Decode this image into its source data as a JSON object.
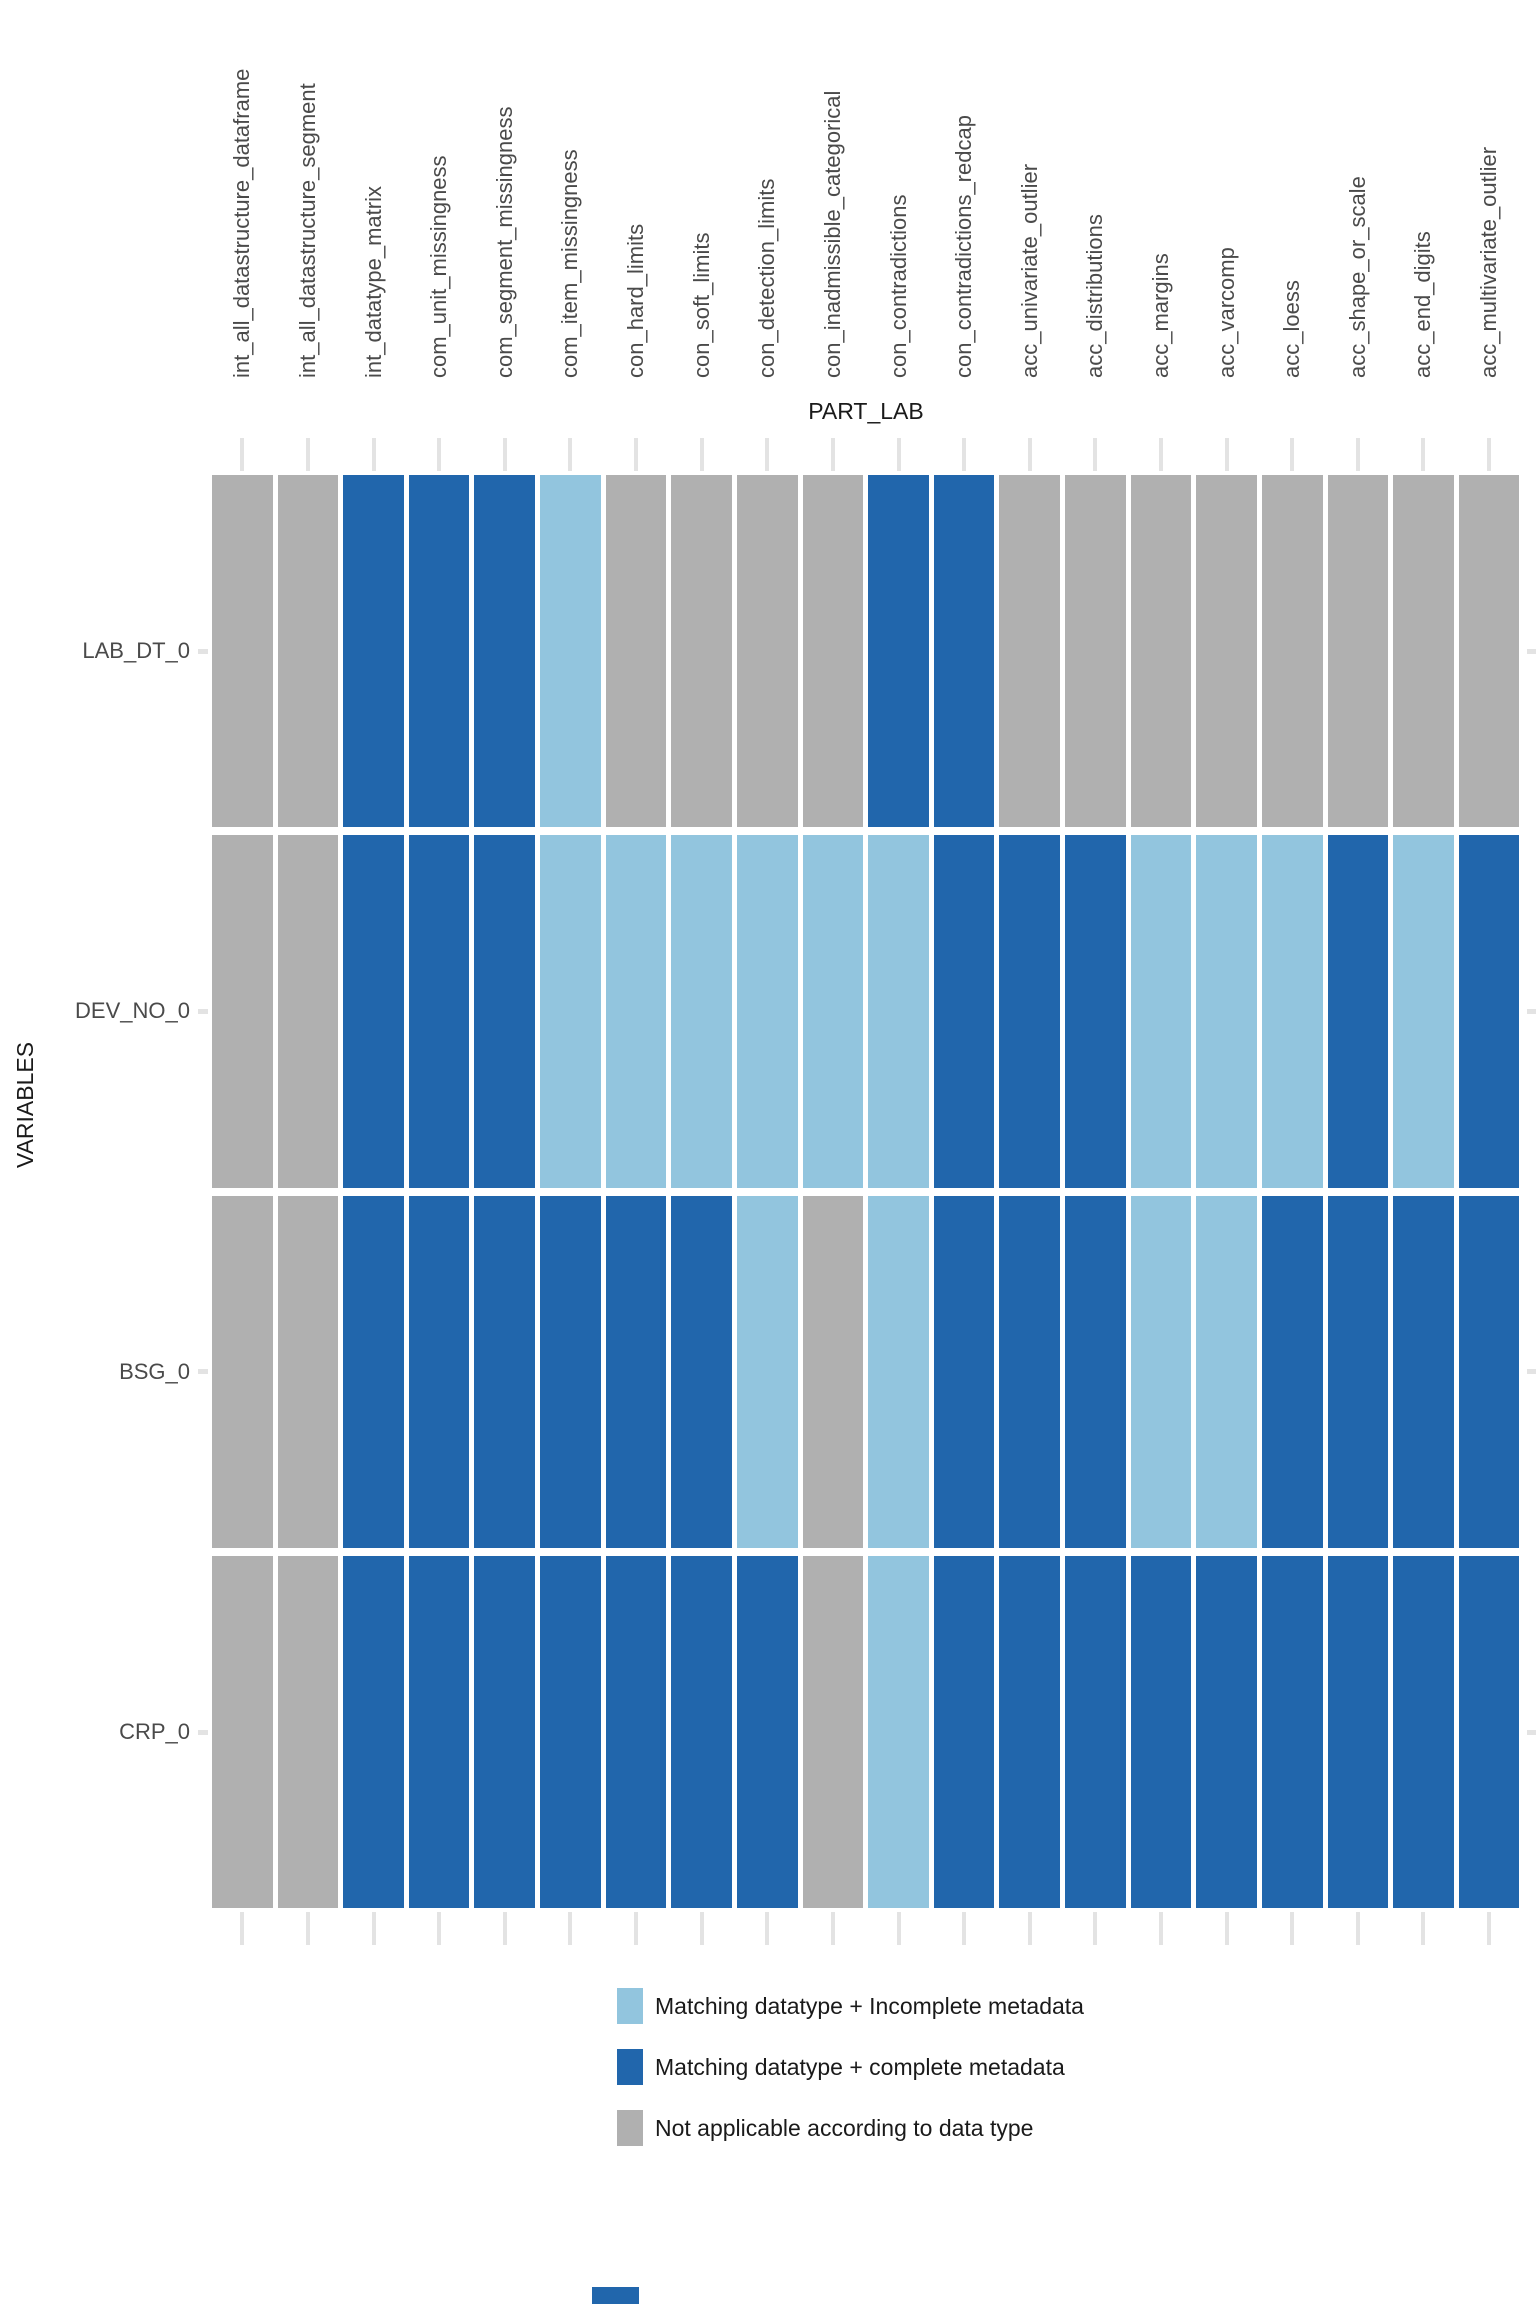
{
  "chart_data": {
    "type": "heatmap",
    "title": "",
    "xlabel": "PART_LAB",
    "ylabel": "VARIABLES",
    "grid": "off",
    "legend_position": "bottom-left",
    "columns": [
      "int_all_datastructure_dataframe",
      "int_all_datastructure_segment",
      "int_datatype_matrix",
      "com_unit_missingness",
      "com_segment_missingness",
      "com_item_missingness",
      "con_hard_limits",
      "con_soft_limits",
      "con_detection_limits",
      "con_inadmissible_categorical",
      "con_contradictions",
      "con_contradictions_redcap",
      "acc_univariate_outlier",
      "acc_distributions",
      "acc_margins",
      "acc_varcomp",
      "acc_loess",
      "acc_shape_or_scale",
      "acc_end_digits",
      "acc_multivariate_outlier"
    ],
    "rows": [
      "LAB_DT_0",
      "DEV_NO_0",
      "BSG_0",
      "CRP_0"
    ],
    "cells": [
      [
        "na",
        "na",
        "complete",
        "complete",
        "complete",
        "incomplete",
        "na",
        "na",
        "na",
        "na",
        "complete",
        "complete",
        "na",
        "na",
        "na",
        "na",
        "na",
        "na",
        "na",
        "na"
      ],
      [
        "na",
        "na",
        "complete",
        "complete",
        "complete",
        "incomplete",
        "incomplete",
        "incomplete",
        "incomplete",
        "incomplete",
        "incomplete",
        "complete",
        "complete",
        "complete",
        "incomplete",
        "incomplete",
        "incomplete",
        "complete",
        "incomplete",
        "complete"
      ],
      [
        "na",
        "na",
        "complete",
        "complete",
        "complete",
        "complete",
        "complete",
        "complete",
        "incomplete",
        "na",
        "incomplete",
        "complete",
        "complete",
        "complete",
        "incomplete",
        "incomplete",
        "complete",
        "complete",
        "complete",
        "complete"
      ],
      [
        "na",
        "na",
        "complete",
        "complete",
        "complete",
        "complete",
        "complete",
        "complete",
        "complete",
        "na",
        "incomplete",
        "complete",
        "complete",
        "complete",
        "complete",
        "complete",
        "complete",
        "complete",
        "complete",
        "complete"
      ]
    ],
    "legend": [
      {
        "key": "incomplete",
        "label": "Matching datatype + Incomplete metadata",
        "color": "#92C5DE"
      },
      {
        "key": "complete",
        "label": "Matching datatype + complete metadata",
        "color": "#2166AC"
      },
      {
        "key": "na",
        "label": "Not applicable according to data type",
        "color": "#B0B0B0"
      }
    ],
    "colors": {
      "cell_complete": "#2166AC",
      "cell_incomplete": "#92C5DE",
      "cell_na": "#B0B0B0",
      "tick": "#E3E3E3",
      "axis_text": "#4a4a4a",
      "title_text": "#1a1a1a",
      "background": "#ffffff"
    }
  },
  "decor": {
    "bottom_partial_box_color": "#2166AC"
  }
}
